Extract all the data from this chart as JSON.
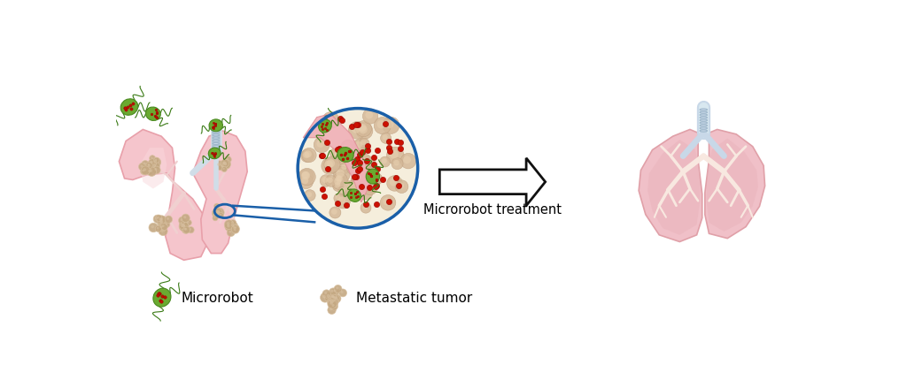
{
  "bg_color": "#ffffff",
  "arrow_text": "Microrobot treatment",
  "legend_microrobot": "Microrobot",
  "legend_tumor": "Metastatic tumor",
  "lung_fill": "#f5c5cc",
  "lung_edge": "#e8a0aa",
  "lung_inner": "#f9d8dc",
  "tumor_color_dark": "#c4a882",
  "tumor_color_light": "#d8c0a0",
  "microrobot_body": "#6aaa30",
  "microrobot_dots": "#bb1100",
  "red_dot_color": "#cc1100",
  "circle_outline": "#1a5fa8",
  "arrow_color": "#111111",
  "trachea_color_light": "#c8d8e8",
  "trachea_color_dark": "#a0b8cc",
  "bronchi_color": "#f0d8d0",
  "vessel_color": "#f0b0b8",
  "vessel_edge": "#e09098"
}
